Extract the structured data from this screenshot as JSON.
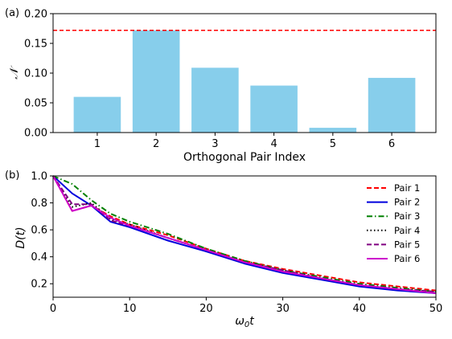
{
  "chart_data": [
    {
      "type": "bar",
      "panel_label": "(a)",
      "categories": [
        "1",
        "2",
        "3",
        "4",
        "5",
        "6"
      ],
      "values": [
        0.06,
        0.172,
        0.109,
        0.079,
        0.008,
        0.092
      ],
      "bar_color": "#87CEEB",
      "reference_line": {
        "y": 0.172,
        "color": "#ff0000",
        "style": "dashed"
      },
      "xlabel": "Orthogonal Pair Index",
      "ylabel": "𝒩",
      "ylim": [
        0,
        0.2
      ],
      "yticks": [
        "0.00",
        "0.05",
        "0.10",
        "0.15",
        "0.20"
      ],
      "grid": false
    },
    {
      "type": "line",
      "panel_label": "(b)",
      "xlabel": "ω0t",
      "ylabel": "D(t)",
      "xlim": [
        0,
        50
      ],
      "ylim": [
        0.1,
        1.0
      ],
      "xticks": [
        "0",
        "10",
        "20",
        "30",
        "40",
        "50"
      ],
      "yticks": [
        "0.2",
        "0.4",
        "0.6",
        "0.8",
        "1.0"
      ],
      "legend_placement": "top-right",
      "grid": false,
      "series": [
        {
          "name": "Pair 1",
          "color": "#ff0000",
          "style": "dashed",
          "x": [
            0,
            2.5,
            5,
            7.5,
            10,
            15,
            20,
            25,
            30,
            35,
            40,
            45,
            50
          ],
          "y": [
            1.0,
            0.74,
            0.78,
            0.7,
            0.64,
            0.56,
            0.46,
            0.37,
            0.31,
            0.26,
            0.21,
            0.18,
            0.15
          ]
        },
        {
          "name": "Pair 2",
          "color": "#0000dd",
          "style": "solid",
          "x": [
            0,
            2.5,
            5,
            7.5,
            10,
            15,
            20,
            25,
            30,
            35,
            40,
            45,
            50
          ],
          "y": [
            1.0,
            0.87,
            0.78,
            0.66,
            0.62,
            0.52,
            0.44,
            0.35,
            0.28,
            0.23,
            0.18,
            0.15,
            0.13
          ]
        },
        {
          "name": "Pair 3",
          "color": "#008000",
          "style": "dashdot",
          "x": [
            0,
            2.5,
            5,
            7.5,
            10,
            15,
            20,
            25,
            30,
            35,
            40,
            45,
            50
          ],
          "y": [
            1.0,
            0.94,
            0.82,
            0.72,
            0.66,
            0.57,
            0.46,
            0.37,
            0.3,
            0.25,
            0.2,
            0.17,
            0.14
          ]
        },
        {
          "name": "Pair 4",
          "color": "#000000",
          "style": "dotted",
          "x": [
            0,
            2.5,
            5,
            7.5,
            10,
            15,
            20,
            25,
            30,
            35,
            40,
            45,
            50
          ],
          "y": [
            1.0,
            0.77,
            0.8,
            0.68,
            0.64,
            0.54,
            0.45,
            0.36,
            0.3,
            0.24,
            0.19,
            0.16,
            0.14
          ]
        },
        {
          "name": "Pair 5",
          "color": "#800080",
          "style": "dashed",
          "x": [
            0,
            2.5,
            5,
            7.5,
            10,
            15,
            20,
            25,
            30,
            35,
            40,
            45,
            50
          ],
          "y": [
            1.0,
            0.79,
            0.79,
            0.67,
            0.63,
            0.54,
            0.45,
            0.36,
            0.3,
            0.24,
            0.19,
            0.16,
            0.14
          ]
        },
        {
          "name": "Pair 6",
          "color": "#cc00cc",
          "style": "solid",
          "x": [
            0,
            2.5,
            5,
            7.5,
            10,
            15,
            20,
            25,
            30,
            35,
            40,
            45,
            50
          ],
          "y": [
            1.0,
            0.74,
            0.78,
            0.69,
            0.63,
            0.54,
            0.45,
            0.36,
            0.29,
            0.24,
            0.19,
            0.16,
            0.13
          ]
        }
      ]
    }
  ]
}
